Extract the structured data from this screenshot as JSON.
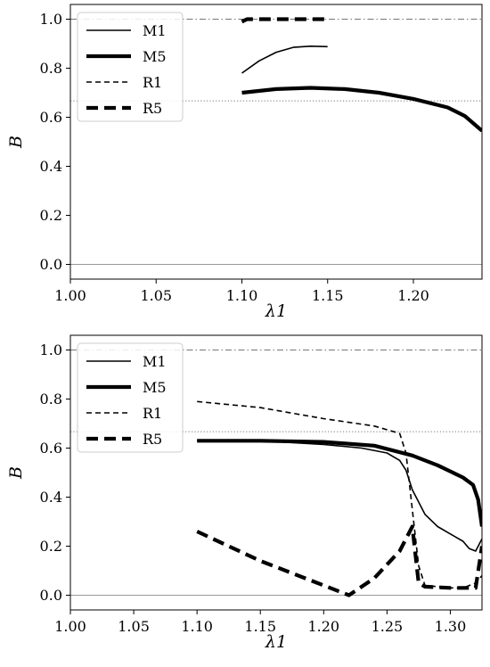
{
  "chart_data": [
    {
      "type": "line",
      "title": "",
      "xlabel": "λ1",
      "ylabel": "B",
      "xlim": [
        1.0,
        1.24
      ],
      "ylim": [
        -0.06,
        1.06
      ],
      "xticks": [
        "1.00",
        "1.05",
        "1.10",
        "1.15",
        "1.20"
      ],
      "xtick_values": [
        1.0,
        1.05,
        1.1,
        1.15,
        1.2
      ],
      "yticks": [
        "0.0",
        "0.2",
        "0.4",
        "0.6",
        "0.8",
        "1.0"
      ],
      "ytick_values": [
        0.0,
        0.2,
        0.4,
        0.6,
        0.8,
        1.0
      ],
      "grid": false,
      "legend": "upper-left",
      "reference_lines": [
        {
          "y": 1.0,
          "style": "dashdot"
        },
        {
          "y": 0.6667,
          "style": "dotted"
        },
        {
          "y": 0.0,
          "style": "solid"
        }
      ],
      "series": [
        {
          "name": "M1",
          "style": "thin-solid",
          "x": [
            1.1,
            1.11,
            1.12,
            1.13,
            1.14,
            1.15
          ],
          "y": [
            0.78,
            0.83,
            0.865,
            0.885,
            0.89,
            0.888
          ]
        },
        {
          "name": "M5",
          "style": "thick-solid",
          "x": [
            1.1,
            1.12,
            1.14,
            1.16,
            1.18,
            1.2,
            1.22,
            1.23,
            1.24
          ],
          "y": [
            0.7,
            0.715,
            0.72,
            0.715,
            0.7,
            0.675,
            0.64,
            0.605,
            0.545
          ]
        },
        {
          "name": "R1",
          "style": "thin-dashed",
          "x": [],
          "y": []
        },
        {
          "name": "R5",
          "style": "thick-dashed",
          "x": [
            1.1,
            1.103,
            1.11,
            1.12,
            1.13,
            1.14,
            1.15
          ],
          "y": [
            0.99,
            1.0,
            1.0,
            1.0,
            1.0,
            1.0,
            1.0
          ]
        }
      ]
    },
    {
      "type": "line",
      "title": "",
      "xlabel": "λ1",
      "ylabel": "B",
      "xlim": [
        1.0,
        1.325
      ],
      "ylim": [
        -0.06,
        1.06
      ],
      "xticks": [
        "1.00",
        "1.05",
        "1.10",
        "1.15",
        "1.20",
        "1.25",
        "1.30"
      ],
      "xtick_values": [
        1.0,
        1.05,
        1.1,
        1.15,
        1.2,
        1.25,
        1.3
      ],
      "yticks": [
        "0.0",
        "0.2",
        "0.4",
        "0.6",
        "0.8",
        "1.0"
      ],
      "ytick_values": [
        0.0,
        0.2,
        0.4,
        0.6,
        0.8,
        1.0
      ],
      "grid": false,
      "legend": "upper-left",
      "reference_lines": [
        {
          "y": 1.0,
          "style": "dashdot"
        },
        {
          "y": 0.6667,
          "style": "dotted"
        },
        {
          "y": 0.0,
          "style": "solid"
        }
      ],
      "series": [
        {
          "name": "M1",
          "style": "thin-solid",
          "x": [
            1.1,
            1.15,
            1.2,
            1.23,
            1.25,
            1.26,
            1.265,
            1.27,
            1.28,
            1.29,
            1.3,
            1.31,
            1.315,
            1.32,
            1.325
          ],
          "y": [
            0.63,
            0.63,
            0.615,
            0.6,
            0.58,
            0.55,
            0.51,
            0.43,
            0.33,
            0.28,
            0.25,
            0.22,
            0.19,
            0.18,
            0.23
          ]
        },
        {
          "name": "M5",
          "style": "thick-solid",
          "x": [
            1.1,
            1.15,
            1.2,
            1.24,
            1.27,
            1.29,
            1.31,
            1.318,
            1.322,
            1.325
          ],
          "y": [
            0.63,
            0.63,
            0.625,
            0.61,
            0.57,
            0.53,
            0.48,
            0.45,
            0.39,
            0.28
          ]
        },
        {
          "name": "R1",
          "style": "thin-dashed",
          "x": [
            1.1,
            1.15,
            1.2,
            1.24,
            1.26,
            1.265,
            1.27,
            1.275,
            1.28,
            1.3,
            1.31,
            1.32,
            1.325
          ],
          "y": [
            0.79,
            0.765,
            0.72,
            0.69,
            0.66,
            0.58,
            0.35,
            0.12,
            0.04,
            0.03,
            0.03,
            0.05,
            0.08
          ]
        },
        {
          "name": "R5",
          "style": "thick-dashed",
          "x": [
            1.1,
            1.15,
            1.2,
            1.22,
            1.24,
            1.26,
            1.27,
            1.275,
            1.28,
            1.3,
            1.32,
            1.325
          ],
          "y": [
            0.26,
            0.14,
            0.04,
            0.0,
            0.07,
            0.18,
            0.28,
            0.05,
            0.035,
            0.03,
            0.03,
            0.2
          ]
        }
      ]
    }
  ]
}
